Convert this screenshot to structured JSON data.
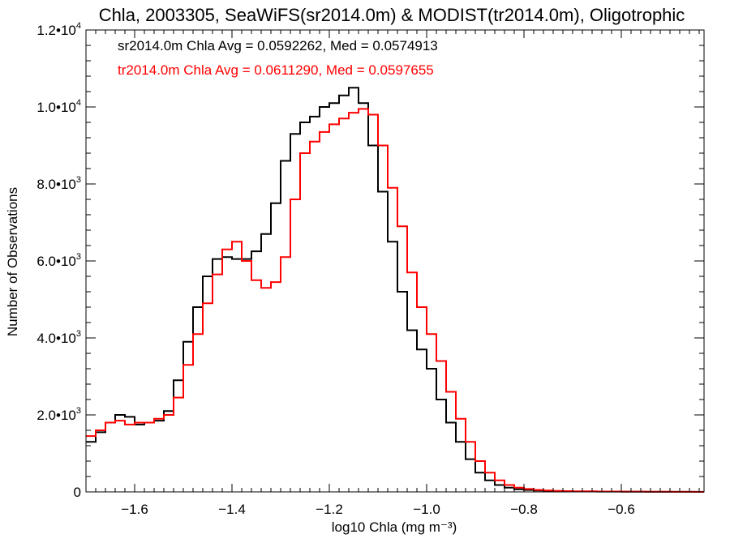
{
  "chart_data": {
    "type": "line",
    "title": "Chla, 2003305, SeaWiFS(sr2014.0m) & MODIST(tr2014.0m), Oligotrophic",
    "xlabel": "log10 Chla (mg m⁻³)",
    "ylabel": "Number of Observations",
    "xlim": [
      -1.7,
      -0.43
    ],
    "ylim": [
      0,
      12000
    ],
    "x_ticks": [
      {
        "value": -1.6,
        "label": "−1.6"
      },
      {
        "value": -1.4,
        "label": "−1.4"
      },
      {
        "value": -1.2,
        "label": "−1.2"
      },
      {
        "value": -1.0,
        "label": "−1.0"
      },
      {
        "value": -0.8,
        "label": "−0.8"
      },
      {
        "value": -0.6,
        "label": "−0.6"
      }
    ],
    "y_ticks": [
      {
        "value": 0,
        "mantissa": "0",
        "exp": ""
      },
      {
        "value": 2000,
        "mantissa": "2.0•10",
        "exp": "3"
      },
      {
        "value": 4000,
        "mantissa": "4.0•10",
        "exp": "3"
      },
      {
        "value": 6000,
        "mantissa": "6.0•10",
        "exp": "3"
      },
      {
        "value": 8000,
        "mantissa": "8.0•10",
        "exp": "3"
      },
      {
        "value": 10000,
        "mantissa": "1.0•10",
        "exp": "4"
      },
      {
        "value": 12000,
        "mantissa": "1.2•10",
        "exp": "4"
      }
    ],
    "grid": false,
    "annotations": [
      {
        "text": "sr2014.0m Chla Avg = 0.0592262, Med = 0.0574913",
        "color": "#000000"
      },
      {
        "text": "tr2014.0m Chla Avg = 0.0611290, Med = 0.0597655",
        "color": "#ff0000"
      }
    ],
    "series": [
      {
        "color": "#000000",
        "x": [
          -1.7,
          -1.68,
          -1.66,
          -1.64,
          -1.62,
          -1.6,
          -1.58,
          -1.56,
          -1.54,
          -1.52,
          -1.5,
          -1.48,
          -1.46,
          -1.44,
          -1.42,
          -1.4,
          -1.38,
          -1.36,
          -1.34,
          -1.32,
          -1.3,
          -1.28,
          -1.26,
          -1.24,
          -1.22,
          -1.2,
          -1.18,
          -1.16,
          -1.14,
          -1.12,
          -1.1,
          -1.08,
          -1.06,
          -1.04,
          -1.02,
          -1.0,
          -0.98,
          -0.96,
          -0.94,
          -0.92,
          -0.9,
          -0.88,
          -0.86,
          -0.84,
          -0.82,
          -0.8,
          -0.78,
          -0.76,
          -0.74,
          -0.72,
          -0.7,
          -0.65,
          -0.6,
          -0.55,
          -0.5,
          -0.45
        ],
        "values": [
          1300,
          1550,
          1800,
          2000,
          1950,
          1750,
          1800,
          1850,
          2100,
          2900,
          3900,
          4800,
          5600,
          6050,
          6100,
          6050,
          6050,
          6250,
          6700,
          7500,
          8600,
          9300,
          9600,
          9750,
          10000,
          10100,
          10300,
          10500,
          10100,
          9000,
          7800,
          6500,
          5200,
          4200,
          3700,
          3200,
          2400,
          1800,
          1300,
          850,
          500,
          300,
          180,
          110,
          70,
          50,
          35,
          25,
          20,
          15,
          10,
          8,
          5,
          3,
          2,
          1
        ]
      },
      {
        "color": "#ff0000",
        "x": [
          -1.7,
          -1.68,
          -1.66,
          -1.64,
          -1.62,
          -1.6,
          -1.58,
          -1.56,
          -1.54,
          -1.52,
          -1.5,
          -1.48,
          -1.46,
          -1.44,
          -1.42,
          -1.4,
          -1.38,
          -1.36,
          -1.34,
          -1.32,
          -1.3,
          -1.28,
          -1.26,
          -1.24,
          -1.22,
          -1.2,
          -1.18,
          -1.16,
          -1.14,
          -1.12,
          -1.1,
          -1.08,
          -1.06,
          -1.04,
          -1.02,
          -1.0,
          -0.98,
          -0.96,
          -0.94,
          -0.92,
          -0.9,
          -0.88,
          -0.86,
          -0.84,
          -0.82,
          -0.8,
          -0.78,
          -0.76,
          -0.74,
          -0.72,
          -0.7,
          -0.65,
          -0.6,
          -0.55,
          -0.5,
          -0.45
        ],
        "values": [
          1450,
          1600,
          1800,
          1850,
          1750,
          1800,
          1800,
          1900,
          2000,
          2450,
          3300,
          4100,
          4900,
          5650,
          6300,
          6500,
          6000,
          5500,
          5300,
          5450,
          6100,
          7600,
          8800,
          9100,
          9350,
          9550,
          9700,
          9850,
          9950,
          9800,
          9000,
          7900,
          6900,
          5700,
          4800,
          4100,
          3400,
          2600,
          1900,
          1300,
          800,
          500,
          300,
          180,
          110,
          75,
          50,
          35,
          25,
          20,
          15,
          10,
          8,
          5,
          3,
          2
        ]
      }
    ]
  }
}
